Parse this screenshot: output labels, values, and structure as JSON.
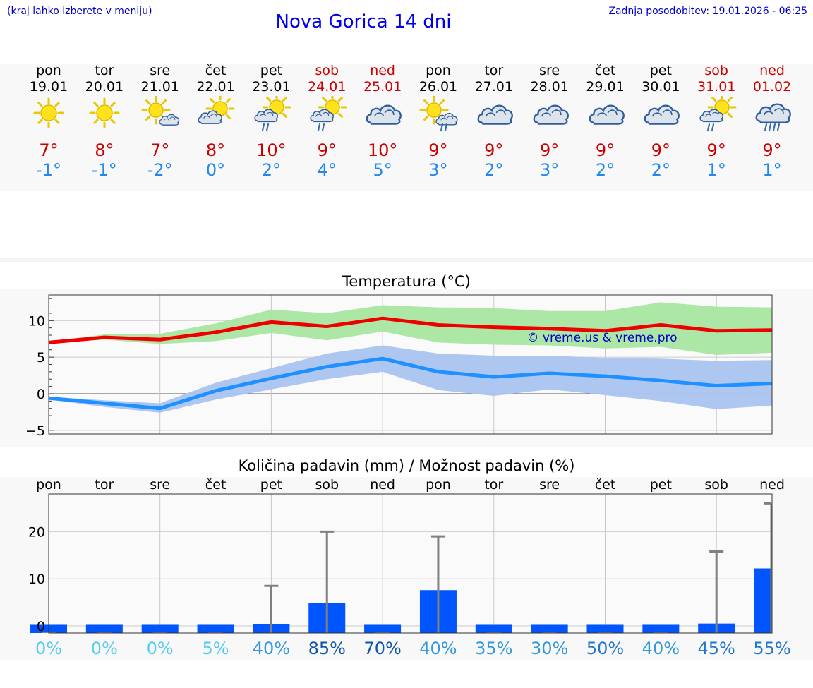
{
  "header": {
    "menu_hint": "(kraj lahko izberete v meniju)",
    "title": "Nova Gorica 14 dni",
    "last_update": "Zadnja posodobitev: 19.01.2026 - 06:25"
  },
  "days": [
    {
      "name": "pon",
      "date": "19.01",
      "icon": "sun-icon",
      "max": "7°",
      "min": "-1°",
      "weekend": false
    },
    {
      "name": "tor",
      "date": "20.01",
      "icon": "sun-icon",
      "max": "8°",
      "min": "-1°",
      "weekend": false
    },
    {
      "name": "sre",
      "date": "21.01",
      "icon": "sun-cloud-icon",
      "max": "7°",
      "min": "-2°",
      "weekend": false
    },
    {
      "name": "čet",
      "date": "22.01",
      "icon": "cloud-sun-icon",
      "max": "8°",
      "min": "0°",
      "weekend": false
    },
    {
      "name": "pet",
      "date": "23.01",
      "icon": "cloud-sun-rain-icon",
      "max": "10°",
      "min": "2°",
      "weekend": false
    },
    {
      "name": "sob",
      "date": "24.01",
      "icon": "cloud-sun-rain-icon",
      "max": "9°",
      "min": "4°",
      "weekend": true
    },
    {
      "name": "ned",
      "date": "25.01",
      "icon": "cloudy-icon",
      "max": "10°",
      "min": "5°",
      "weekend": true
    },
    {
      "name": "pon",
      "date": "26.01",
      "icon": "sun-cloud-rain-icon",
      "max": "9°",
      "min": "3°",
      "weekend": false
    },
    {
      "name": "tor",
      "date": "27.01",
      "icon": "cloudy-icon",
      "max": "9°",
      "min": "2°",
      "weekend": false
    },
    {
      "name": "sre",
      "date": "28.01",
      "icon": "cloudy-icon",
      "max": "9°",
      "min": "3°",
      "weekend": false
    },
    {
      "name": "čet",
      "date": "29.01",
      "icon": "cloudy-icon",
      "max": "9°",
      "min": "2°",
      "weekend": false
    },
    {
      "name": "pet",
      "date": "30.01",
      "icon": "cloudy-icon",
      "max": "9°",
      "min": "2°",
      "weekend": false
    },
    {
      "name": "sob",
      "date": "31.01",
      "icon": "cloud-sun-rain-icon",
      "max": "9°",
      "min": "1°",
      "weekend": true
    },
    {
      "name": "ned",
      "date": "01.02",
      "icon": "cloud-heavy-rain-icon",
      "max": "9°",
      "min": "1°",
      "weekend": true
    }
  ],
  "colors": {
    "max_line": "#ee0000",
    "max_band": "#a8e6a0",
    "min_line": "#1e90ff",
    "min_band": "#aac4f0",
    "precip_bar": "#0055ff",
    "whisker": "#808080",
    "weekend": "#cc0000",
    "watermark": "#0000cc"
  },
  "chart_data": [
    {
      "type": "line",
      "title": "Temperatura (°C)",
      "watermark": "© vreme.us & vreme.pro",
      "ylim": [
        -5.5,
        13.5
      ],
      "yticks": [
        -5,
        0,
        5,
        10
      ],
      "ytick_labels": [
        "−5",
        "0",
        "5",
        "10"
      ],
      "x_count": 14,
      "series": [
        {
          "name": "max",
          "values": [
            7.0,
            7.7,
            7.4,
            8.4,
            9.8,
            9.2,
            10.3,
            9.4,
            9.1,
            8.9,
            8.6,
            9.4,
            8.6,
            8.7
          ],
          "band_low": [
            6.9,
            7.4,
            6.8,
            7.2,
            8.3,
            7.3,
            8.5,
            7.0,
            6.7,
            6.6,
            6.2,
            6.4,
            5.3,
            5.6
          ],
          "band_high": [
            7.1,
            8.1,
            8.2,
            9.6,
            11.5,
            11.0,
            12.1,
            11.8,
            11.7,
            11.3,
            11.3,
            12.5,
            11.9,
            11.8
          ]
        },
        {
          "name": "min",
          "values": [
            -0.6,
            -1.3,
            -2.0,
            0.4,
            2.1,
            3.7,
            4.8,
            3.0,
            2.3,
            2.8,
            2.4,
            1.8,
            1.1,
            1.4
          ],
          "band_low": [
            -0.8,
            -1.8,
            -2.6,
            -0.8,
            0.6,
            2.0,
            3.0,
            0.5,
            -0.3,
            0.6,
            -0.2,
            -1.0,
            -2.1,
            -1.6
          ],
          "band_high": [
            -0.4,
            -0.9,
            -1.3,
            1.5,
            3.5,
            5.5,
            6.6,
            5.5,
            5.2,
            5.2,
            4.9,
            4.8,
            4.5,
            4.6
          ]
        }
      ]
    },
    {
      "type": "bar",
      "title": "Količina padavin (mm) / Možnost padavin (%)",
      "categories": [
        "pon",
        "tor",
        "sre",
        "čet",
        "pet",
        "sob",
        "ned",
        "pon",
        "tor",
        "sre",
        "čet",
        "pet",
        "sob",
        "ned"
      ],
      "values": [
        0,
        0,
        0,
        0,
        0.4,
        4.8,
        0,
        7.6,
        0,
        0,
        0,
        0,
        0.5,
        12.2
      ],
      "whisker_high": [
        0,
        0,
        0,
        0,
        8.5,
        20.0,
        0,
        19.0,
        0,
        0,
        0,
        0,
        15.8,
        26.0
      ],
      "ylim": [
        -1.5,
        28
      ],
      "yticks": [
        0,
        10,
        20
      ],
      "probabilities": [
        "0%",
        "0%",
        "0%",
        "5%",
        "40%",
        "85%",
        "70%",
        "40%",
        "35%",
        "30%",
        "50%",
        "40%",
        "45%",
        "55%"
      ],
      "probability_colors": [
        "#55ccee",
        "#55ccee",
        "#55ccee",
        "#55ccee",
        "#3399dd",
        "#1155aa",
        "#1155aa",
        "#3399dd",
        "#3399dd",
        "#3399dd",
        "#2277cc",
        "#3399dd",
        "#2277cc",
        "#2277cc"
      ]
    }
  ]
}
